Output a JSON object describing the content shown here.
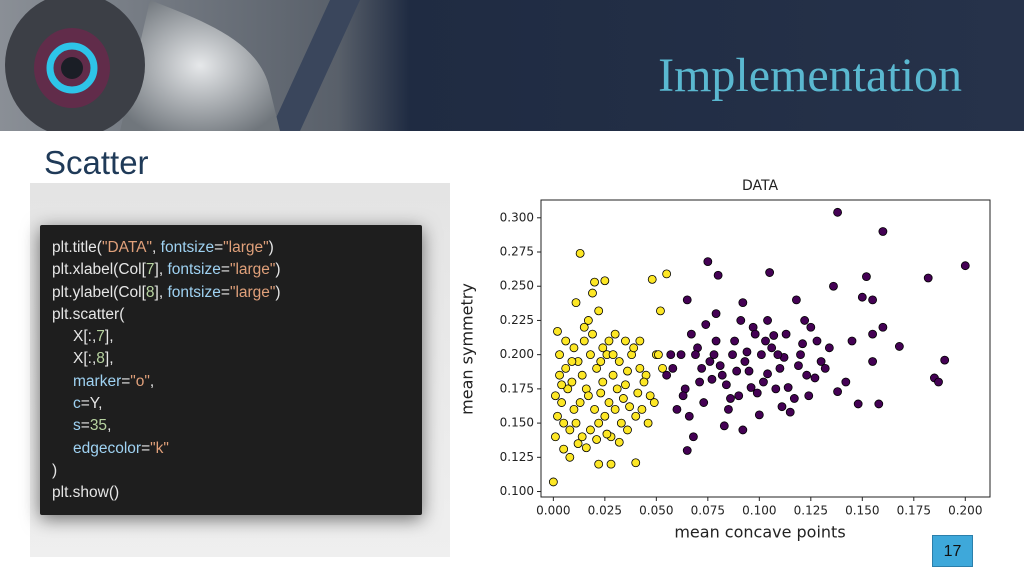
{
  "header": {
    "title": "Implementation"
  },
  "section": "Scatter",
  "code": {
    "lines": [
      [
        "plt.title(",
        "\"DATA\"",
        ", ",
        "fontsize",
        "=",
        "\"large\"",
        ")"
      ],
      [
        "plt.xlabel(Col[",
        "7",
        "], ",
        "fontsize",
        "=",
        "\"large\"",
        ")"
      ],
      [
        "plt.ylabel(Col[",
        "8",
        "], ",
        "fontsize",
        "=",
        "\"large\"",
        ")"
      ],
      [
        "plt.scatter("
      ],
      [
        "X[:,",
        "7",
        "],"
      ],
      [
        "X[:,",
        "8",
        "],"
      ],
      [
        "marker",
        "=",
        "\"o\"",
        ","
      ],
      [
        "c",
        "=Y,"
      ],
      [
        "s",
        "=",
        "35",
        ","
      ],
      [
        "edgecolor",
        "=",
        "\"k\""
      ],
      [
        ")"
      ],
      [
        "plt.show()"
      ]
    ]
  },
  "page_number": "17",
  "chart_data": {
    "type": "scatter",
    "title": "DATA",
    "x_label": "mean concave points",
    "y_label": "mean symmetry",
    "xlim": [
      -0.006,
      0.212
    ],
    "ylim": [
      0.096,
      0.313
    ],
    "xticks": [
      {
        "value": 0,
        "label": "0.000"
      },
      {
        "value": 0.025,
        "label": "0.025"
      },
      {
        "value": 0.05,
        "label": "0.050"
      },
      {
        "value": 0.075,
        "label": "0.075"
      },
      {
        "value": 0.1,
        "label": "0.100"
      },
      {
        "value": 0.125,
        "label": "0.125"
      },
      {
        "value": 0.15,
        "label": "0.150"
      },
      {
        "value": 0.175,
        "label": "0.175"
      },
      {
        "value": 0.2,
        "label": "0.200"
      }
    ],
    "yticks": [
      {
        "value": 0.1,
        "label": "0.100"
      },
      {
        "value": 0.125,
        "label": "0.125"
      },
      {
        "value": 0.15,
        "label": "0.150"
      },
      {
        "value": 0.175,
        "label": "0.175"
      },
      {
        "value": 0.2,
        "label": "0.200"
      },
      {
        "value": 0.225,
        "label": "0.225"
      },
      {
        "value": 0.25,
        "label": "0.250"
      },
      {
        "value": 0.275,
        "label": "0.275"
      },
      {
        "value": 0.3,
        "label": "0.300"
      }
    ],
    "grid": false,
    "series": [
      {
        "color": "#440154",
        "x": [
          0.138,
          0.16,
          0.2,
          0.182,
          0.152,
          0.136,
          0.105,
          0.075,
          0.08,
          0.065,
          0.092,
          0.118,
          0.15,
          0.155,
          0.168,
          0.19,
          0.185,
          0.187,
          0.158,
          0.148,
          0.138,
          0.16,
          0.155,
          0.145,
          0.128,
          0.125,
          0.155,
          0.142,
          0.115,
          0.1,
          0.083,
          0.068,
          0.065,
          0.085,
          0.09,
          0.07,
          0.072,
          0.078,
          0.082,
          0.088,
          0.093,
          0.097,
          0.102,
          0.106,
          0.11,
          0.113,
          0.12,
          0.123,
          0.13,
          0.134,
          0.062,
          0.064,
          0.067,
          0.073,
          0.076,
          0.079,
          0.084,
          0.087,
          0.091,
          0.095,
          0.099,
          0.103,
          0.108,
          0.112,
          0.117,
          0.121,
          0.127,
          0.058,
          0.06,
          0.071,
          0.074,
          0.081,
          0.086,
          0.094,
          0.098,
          0.104,
          0.109,
          0.114,
          0.119,
          0.124,
          0.055,
          0.057,
          0.063,
          0.069,
          0.077,
          0.089,
          0.096,
          0.101,
          0.107,
          0.111,
          0.066,
          0.079,
          0.092,
          0.104,
          0.122,
          0.132
        ],
        "values": [
          0.304,
          0.29,
          0.265,
          0.256,
          0.257,
          0.25,
          0.26,
          0.268,
          0.258,
          0.24,
          0.238,
          0.24,
          0.242,
          0.24,
          0.206,
          0.196,
          0.183,
          0.18,
          0.164,
          0.164,
          0.173,
          0.22,
          0.215,
          0.21,
          0.21,
          0.22,
          0.195,
          0.18,
          0.158,
          0.156,
          0.148,
          0.14,
          0.13,
          0.16,
          0.17,
          0.205,
          0.19,
          0.2,
          0.185,
          0.21,
          0.195,
          0.22,
          0.18,
          0.205,
          0.19,
          0.215,
          0.2,
          0.185,
          0.195,
          0.205,
          0.2,
          0.175,
          0.215,
          0.165,
          0.195,
          0.21,
          0.178,
          0.2,
          0.225,
          0.188,
          0.172,
          0.21,
          0.175,
          0.198,
          0.168,
          0.208,
          0.183,
          0.19,
          0.16,
          0.18,
          0.222,
          0.192,
          0.168,
          0.202,
          0.215,
          0.186,
          0.2,
          0.176,
          0.192,
          0.17,
          0.185,
          0.2,
          0.17,
          0.2,
          0.182,
          0.188,
          0.176,
          0.2,
          0.214,
          0.162,
          0.155,
          0.23,
          0.145,
          0.225,
          0.225,
          0.19
        ]
      },
      {
        "color": "#fde725",
        "x": [
          0.0,
          0.013,
          0.02,
          0.025,
          0.011,
          0.019,
          0.022,
          0.052,
          0.055,
          0.048,
          0.002,
          0.015,
          0.03,
          0.022,
          0.028,
          0.04,
          0.005,
          0.008,
          0.001,
          0.003,
          0.006,
          0.009,
          0.012,
          0.014,
          0.016,
          0.018,
          0.021,
          0.024,
          0.026,
          0.029,
          0.032,
          0.035,
          0.038,
          0.042,
          0.045,
          0.05,
          0.001,
          0.004,
          0.007,
          0.01,
          0.013,
          0.017,
          0.02,
          0.023,
          0.027,
          0.031,
          0.034,
          0.037,
          0.041,
          0.044,
          0.047,
          0.053,
          0.002,
          0.005,
          0.008,
          0.011,
          0.014,
          0.018,
          0.022,
          0.025,
          0.028,
          0.033,
          0.036,
          0.04,
          0.043,
          0.046,
          0.049,
          0.003,
          0.006,
          0.01,
          0.015,
          0.019,
          0.024,
          0.027,
          0.03,
          0.035,
          0.039,
          0.012,
          0.016,
          0.021,
          0.026,
          0.032,
          0.004,
          0.009,
          0.017,
          0.023,
          0.029,
          0.036,
          0.042,
          0.051
        ],
        "values": [
          0.107,
          0.274,
          0.253,
          0.254,
          0.238,
          0.245,
          0.232,
          0.232,
          0.259,
          0.255,
          0.217,
          0.22,
          0.16,
          0.12,
          0.12,
          0.121,
          0.131,
          0.125,
          0.14,
          0.2,
          0.19,
          0.18,
          0.195,
          0.185,
          0.175,
          0.2,
          0.19,
          0.18,
          0.2,
          0.185,
          0.195,
          0.178,
          0.2,
          0.19,
          0.185,
          0.2,
          0.17,
          0.165,
          0.175,
          0.16,
          0.165,
          0.17,
          0.16,
          0.172,
          0.165,
          0.175,
          0.168,
          0.162,
          0.172,
          0.18,
          0.17,
          0.19,
          0.155,
          0.15,
          0.145,
          0.15,
          0.14,
          0.145,
          0.15,
          0.155,
          0.14,
          0.15,
          0.145,
          0.155,
          0.16,
          0.15,
          0.165,
          0.185,
          0.21,
          0.205,
          0.21,
          0.215,
          0.205,
          0.21,
          0.215,
          0.21,
          0.205,
          0.135,
          0.132,
          0.138,
          0.142,
          0.136,
          0.178,
          0.195,
          0.225,
          0.195,
          0.2,
          0.188,
          0.21,
          0.2
        ]
      }
    ]
  }
}
